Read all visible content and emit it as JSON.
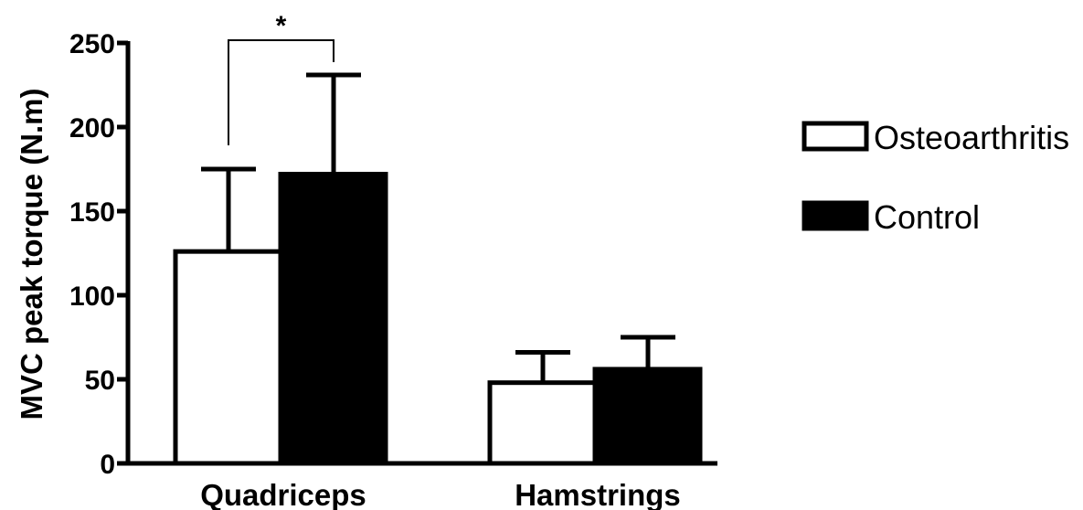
{
  "chart_data": {
    "type": "bar",
    "ylabel": "MVC peak torque (N.m)",
    "xlabel": "",
    "ylim": [
      0,
      250
    ],
    "yticks": [
      0,
      50,
      100,
      150,
      200,
      250
    ],
    "categories": [
      "Quadriceps",
      "Hamstrings"
    ],
    "series": [
      {
        "name": "Osteoarthritis",
        "values": [
          126,
          48
        ],
        "errors": [
          49,
          18
        ],
        "fill": "#ffffff"
      },
      {
        "name": "Control",
        "values": [
          172,
          56
        ],
        "errors": [
          59,
          19
        ],
        "fill": "#000000"
      }
    ],
    "error_bars": "upper",
    "annotations": [
      {
        "text": "*",
        "category": "Quadriceps",
        "between": [
          "Osteoarthritis",
          "Control"
        ]
      }
    ],
    "legend_position": "right",
    "grid": false
  }
}
